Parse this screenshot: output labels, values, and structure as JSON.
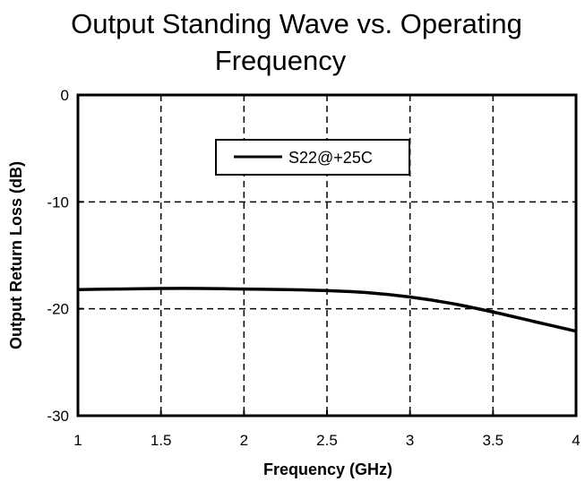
{
  "chart_data": {
    "type": "line",
    "title_line1": "Output Standing Wave vs. Operating",
    "title_line2": "Frequency",
    "xlabel": "Frequency (GHz)",
    "ylabel": "Output Return Loss (dB)",
    "xlim": [
      1,
      4
    ],
    "ylim": [
      -30,
      0
    ],
    "x_ticks": [
      1,
      1.5,
      2,
      2.5,
      3,
      3.5,
      4
    ],
    "x_tick_labels": [
      "1",
      "1.5",
      "2",
      "2.5",
      "3",
      "3.5",
      "4"
    ],
    "y_ticks": [
      0,
      -10,
      -20,
      -30
    ],
    "y_tick_labels": [
      "0",
      "-10",
      "-20",
      "-30"
    ],
    "grid": true,
    "legend_position": "top-center",
    "series": [
      {
        "name": "S22@+25C",
        "color": "#000000",
        "x": [
          1.0,
          1.25,
          1.5,
          1.75,
          2.0,
          2.25,
          2.5,
          2.75,
          3.0,
          3.25,
          3.5,
          3.75,
          4.0
        ],
        "y": [
          -18.2,
          -18.15,
          -18.1,
          -18.1,
          -18.15,
          -18.2,
          -18.3,
          -18.5,
          -18.9,
          -19.5,
          -20.3,
          -21.2,
          -22.1
        ]
      }
    ]
  }
}
